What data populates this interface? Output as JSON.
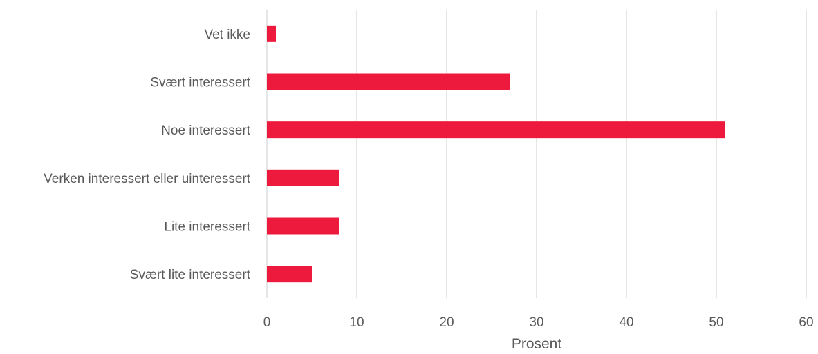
{
  "chart_data": {
    "type": "bar",
    "orientation": "horizontal",
    "categories": [
      "Vet ikke",
      "Svært interessert",
      "Noe interessert",
      "Verken interessert eller uinteressert",
      "Lite interessert",
      "Svært lite interessert"
    ],
    "values": [
      1,
      27,
      51,
      8,
      8,
      5
    ],
    "title": "",
    "xlabel": "Prosent",
    "ylabel": "",
    "xlim": [
      0,
      60
    ],
    "xticks": [
      "0",
      "10",
      "20",
      "30",
      "40",
      "50",
      "60"
    ],
    "grid": "vertical",
    "legend": "none",
    "bar_color": "#ee1a3d"
  }
}
